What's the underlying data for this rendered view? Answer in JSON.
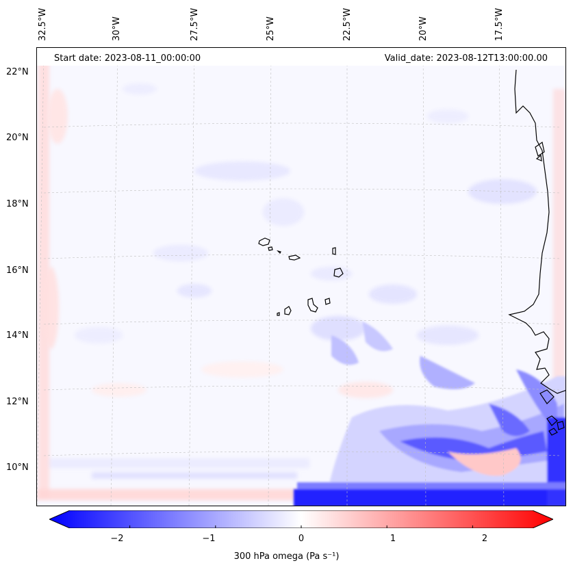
{
  "map": {
    "start_date": "Start date: 2023-08-11_00:00:00",
    "valid_date": "Valid_date: 2023-08-12T13:00:00.00",
    "longitude_labels": [
      "32.5°W",
      "30°W",
      "27.5°W",
      "25°W",
      "22.5°W",
      "20°W",
      "17.5°W"
    ],
    "latitude_labels": [
      "22°N",
      "20°N",
      "18°N",
      "16°N",
      "14°N",
      "12°N",
      "10°N"
    ],
    "variable": "300 hPa omega",
    "units": "Pa s⁻¹"
  },
  "colorbar": {
    "ticks": [
      "−2",
      "−1",
      "0",
      "1",
      "2"
    ],
    "tick_values": [
      -2,
      -1,
      0,
      1,
      2
    ],
    "range": [
      -2.7,
      2.7
    ],
    "label": "300 hPa omega (Pa s⁻¹)",
    "colormap": "bwr",
    "color_min": "#0000ff",
    "color_mid": "#ffffff",
    "color_max": "#ff0000"
  }
}
